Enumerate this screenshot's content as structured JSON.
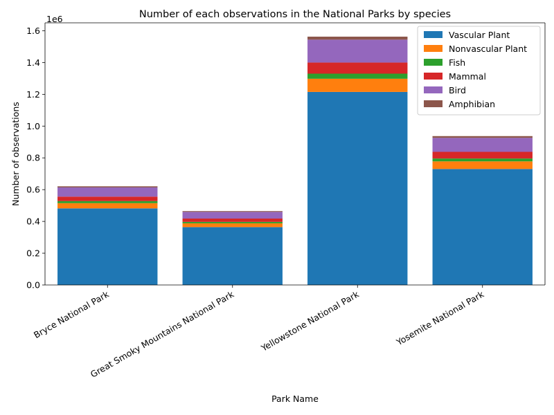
{
  "chart_data": {
    "type": "bar",
    "stacked": true,
    "title": "Number of each observations in the National Parks by species",
    "xlabel": "Park Name",
    "ylabel": "Number of observations",
    "y_scale_label": "1e6",
    "y_tick_labels": [
      "0.0",
      "0.2",
      "0.4",
      "0.6",
      "0.8",
      "1.0",
      "1.2",
      "1.4",
      "1.6"
    ],
    "ylim": [
      0,
      1650000
    ],
    "categories": [
      "Bryce National Park",
      "Great Smoky Mountains National Park",
      "Yellowstone National Park",
      "Yosemite National Park"
    ],
    "series": [
      {
        "name": "Vascular Plant",
        "color": "#1f77b4",
        "values": [
          482000,
          364000,
          1215000,
          730000
        ]
      },
      {
        "name": "Nonvascular Plant",
        "color": "#ff7f0e",
        "values": [
          33000,
          24000,
          83000,
          48000
        ]
      },
      {
        "name": "Fish",
        "color": "#2ca02c",
        "values": [
          13000,
          9000,
          32000,
          18000
        ]
      },
      {
        "name": "Mammal",
        "color": "#d62728",
        "values": [
          28000,
          21000,
          70000,
          42000
        ]
      },
      {
        "name": "Bird",
        "color": "#9467bd",
        "values": [
          58000,
          42000,
          144000,
          88000
        ]
      },
      {
        "name": "Amphibian",
        "color": "#8c564b",
        "values": [
          7000,
          5000,
          19000,
          11000
        ]
      }
    ],
    "legend_position": "top-right",
    "grid": false
  }
}
